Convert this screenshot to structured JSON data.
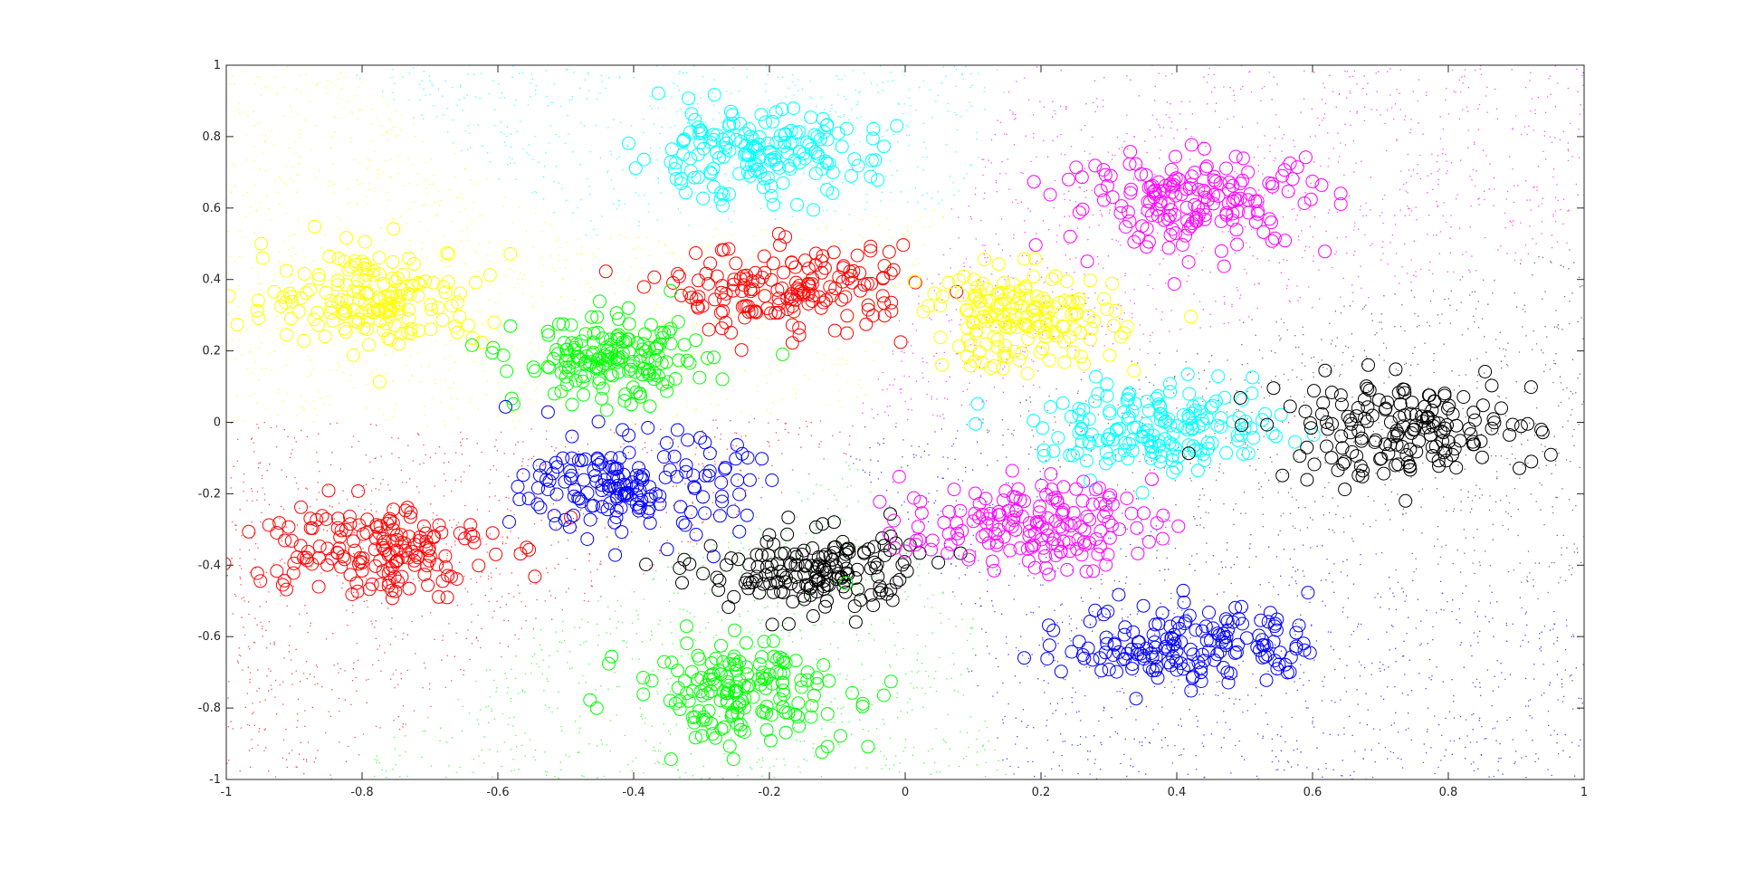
{
  "chart_data": {
    "type": "scatter",
    "title": "",
    "xlabel": "",
    "ylabel": "",
    "xlim": [
      -1,
      1
    ],
    "ylim": [
      -1,
      1
    ],
    "xticks": [
      -1,
      -0.8,
      -0.6,
      -0.4,
      -0.2,
      0,
      0.2,
      0.4,
      0.6,
      0.8,
      1
    ],
    "yticks": [
      -1,
      -0.8,
      -0.6,
      -0.4,
      -0.2,
      0,
      0.2,
      0.4,
      0.6,
      0.8,
      1
    ],
    "xtick_labels": [
      "-1",
      "-0.8",
      "-0.6",
      "-0.4",
      "-0.2",
      "0",
      "0.2",
      "0.4",
      "0.6",
      "0.8",
      "1"
    ],
    "ytick_labels": [
      "-1",
      "-0.8",
      "-0.6",
      "-0.4",
      "-0.2",
      "0",
      "0.2",
      "0.4",
      "0.6",
      "0.8",
      "1"
    ],
    "grid": false,
    "legend": "none",
    "background_regions": {
      "description_markers": "dense dot fill colored by nearest cluster center",
      "seeds": [
        {
          "x": -0.23,
          "y": 0.75,
          "color": "#00ffff"
        },
        {
          "x": 0.43,
          "y": 0.62,
          "color": "#ff00ff"
        },
        {
          "x": -0.78,
          "y": 0.35,
          "color": "#ffff00"
        },
        {
          "x": -0.17,
          "y": 0.37,
          "color": "#ffff00"
        },
        {
          "x": -0.43,
          "y": 0.17,
          "color": "#ffff00"
        },
        {
          "x": 0.17,
          "y": 0.29,
          "color": "#ff00ff"
        },
        {
          "x": 0.38,
          "y": -0.02,
          "color": "#000000"
        },
        {
          "x": 0.73,
          "y": -0.02,
          "color": "#000000"
        },
        {
          "x": -0.79,
          "y": -0.35,
          "color": "#ff0000"
        },
        {
          "x": -0.4,
          "y": -0.18,
          "color": "#ff0000"
        },
        {
          "x": -0.14,
          "y": -0.42,
          "color": "#00ff00"
        },
        {
          "x": -0.24,
          "y": -0.75,
          "color": "#00ff00"
        },
        {
          "x": 0.18,
          "y": -0.29,
          "color": "#0000ff"
        },
        {
          "x": 0.42,
          "y": -0.62,
          "color": "#0000ff"
        }
      ]
    },
    "series": [
      {
        "color": "#00ffff",
        "marker": "circle",
        "center": [
          -0.23,
          0.75
        ],
        "spread": [
          0.09,
          0.06
        ],
        "count": 170
      },
      {
        "color": "#ff00ff",
        "marker": "circle",
        "center": [
          0.43,
          0.62
        ],
        "spread": [
          0.1,
          0.07
        ],
        "count": 170
      },
      {
        "color": "#ffff00",
        "marker": "circle",
        "center": [
          -0.78,
          0.35
        ],
        "spread": [
          0.08,
          0.07
        ],
        "count": 170
      },
      {
        "color": "#ff0000",
        "marker": "circle",
        "center": [
          -0.17,
          0.37
        ],
        "spread": [
          0.09,
          0.06
        ],
        "count": 170
      },
      {
        "color": "#00ff00",
        "marker": "circle",
        "center": [
          -0.43,
          0.17
        ],
        "spread": [
          0.07,
          0.06
        ],
        "count": 170
      },
      {
        "color": "#ffff00",
        "marker": "circle",
        "center": [
          0.17,
          0.29
        ],
        "spread": [
          0.07,
          0.07
        ],
        "count": 170
      },
      {
        "color": "#00ffff",
        "marker": "circle",
        "center": [
          0.38,
          -0.02
        ],
        "spread": [
          0.09,
          0.06
        ],
        "count": 170
      },
      {
        "color": "#000000",
        "marker": "circle",
        "center": [
          0.73,
          -0.02
        ],
        "spread": [
          0.1,
          0.07
        ],
        "count": 170
      },
      {
        "color": "#ff0000",
        "marker": "circle",
        "center": [
          -0.79,
          -0.35
        ],
        "spread": [
          0.09,
          0.07
        ],
        "count": 170
      },
      {
        "color": "#0000ff",
        "marker": "circle",
        "center": [
          -0.4,
          -0.18
        ],
        "spread": [
          0.08,
          0.07
        ],
        "count": 170
      },
      {
        "color": "#000000",
        "marker": "circle",
        "center": [
          -0.14,
          -0.42
        ],
        "spread": [
          0.08,
          0.06
        ],
        "count": 170
      },
      {
        "color": "#00ff00",
        "marker": "circle",
        "center": [
          -0.24,
          -0.75
        ],
        "spread": [
          0.08,
          0.07
        ],
        "count": 170
      },
      {
        "color": "#ff00ff",
        "marker": "circle",
        "center": [
          0.18,
          -0.29
        ],
        "spread": [
          0.09,
          0.06
        ],
        "count": 170
      },
      {
        "color": "#0000ff",
        "marker": "circle",
        "center": [
          0.42,
          -0.62
        ],
        "spread": [
          0.09,
          0.06
        ],
        "count": 170
      }
    ]
  }
}
